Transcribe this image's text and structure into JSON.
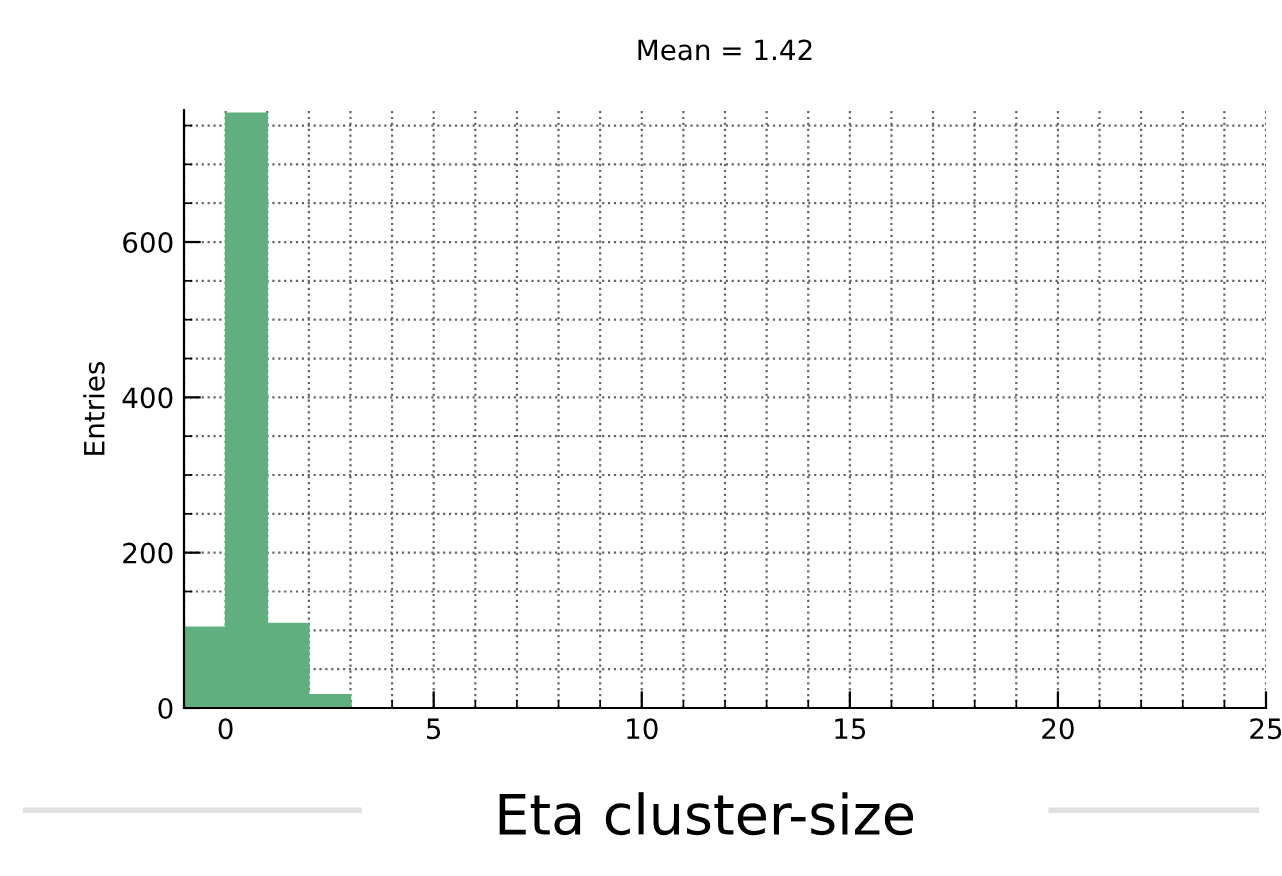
{
  "chart_data": {
    "type": "histogram",
    "title": "Mean = 1.42",
    "xlabel": "Eta cluster-size",
    "ylabel": "Entries",
    "bins": [
      -1,
      0,
      1,
      2,
      3,
      4,
      5,
      6,
      7,
      8,
      9,
      10,
      11,
      12,
      13,
      14,
      15,
      16,
      17,
      18,
      19,
      20,
      21,
      22,
      23,
      24,
      25
    ],
    "values": [
      104,
      766,
      109,
      17,
      null,
      null,
      null,
      0,
      0,
      0,
      0,
      0,
      0,
      0,
      0,
      0,
      0,
      0,
      0,
      0,
      0,
      0,
      0,
      0,
      null,
      0
    ],
    "color": "#5fb07e",
    "xlim": [
      -1,
      25
    ],
    "xticks": [
      0,
      5,
      10,
      15,
      20,
      25
    ],
    "ylim": [
      0,
      770
    ],
    "yticks": [
      0,
      200,
      400,
      600
    ],
    "grid": true
  }
}
